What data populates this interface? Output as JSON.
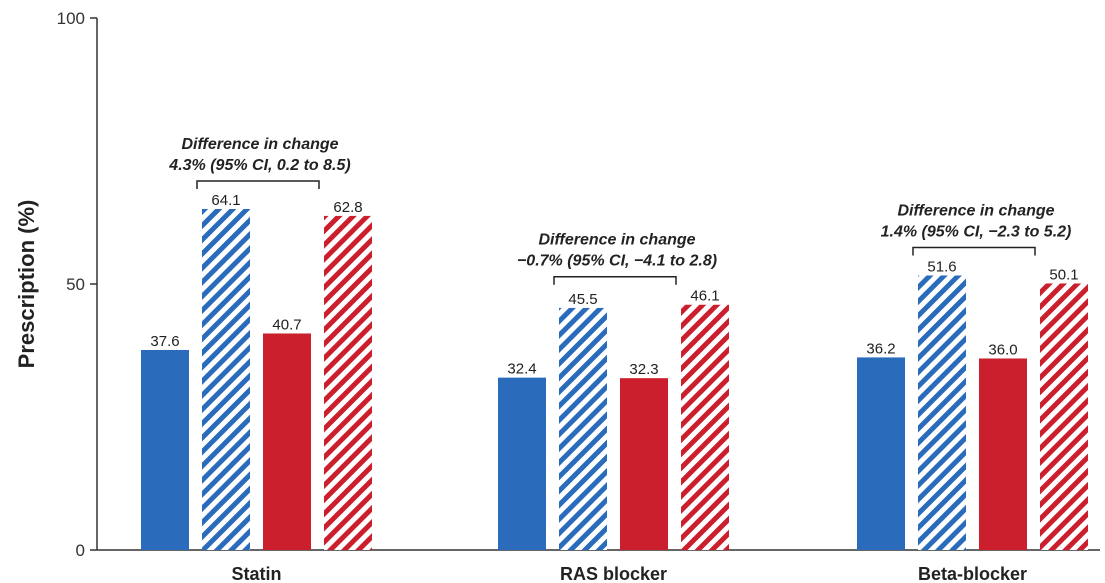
{
  "chart_data": {
    "type": "bar",
    "title": "",
    "xlabel": "",
    "ylabel": "Prescription (%)",
    "ylim": [
      0,
      100
    ],
    "yticks": [
      0,
      50,
      100
    ],
    "grid": false,
    "categories": [
      "Statin",
      "RAS blocker",
      "Beta-blocker"
    ],
    "series": [
      {
        "values": [
          37.6,
          32.4,
          36.2
        ],
        "color": "#2a6cbb",
        "pattern": "solid"
      },
      {
        "values": [
          64.1,
          45.5,
          51.6
        ],
        "color": "#2a6cbb",
        "pattern": "hatched"
      },
      {
        "values": [
          40.7,
          32.3,
          36.0
        ],
        "color": "#cc1f2e",
        "pattern": "solid"
      },
      {
        "values": [
          62.8,
          46.1,
          50.1
        ],
        "color": "#cc1f2e",
        "pattern": "hatched"
      }
    ],
    "annotations": [
      {
        "category": "Statin",
        "line1": "Difference in change",
        "line2": "4.3% (95% CI, 0.2 to 8.5)"
      },
      {
        "category": "RAS blocker",
        "line1": "Difference in change",
        "line2": "−0.7% (95% CI, −4.1 to 2.8)"
      },
      {
        "category": "Beta-blocker",
        "line1": "Difference in change",
        "line2": "1.4% (95% CI, −2.3 to 5.2)"
      }
    ]
  }
}
